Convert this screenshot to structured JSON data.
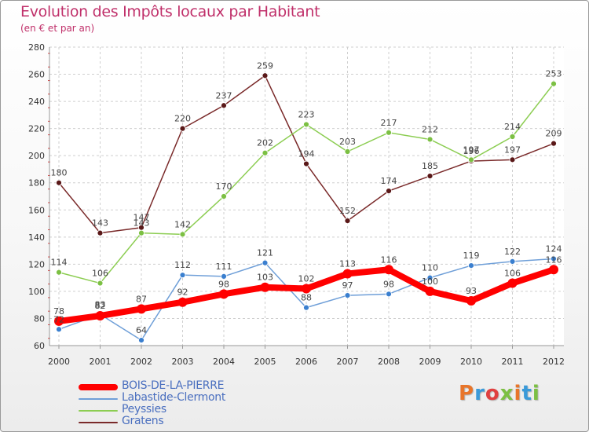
{
  "chart_data": {
    "type": "line",
    "title": "Evolution des Impôts locaux par Habitant",
    "subtitle": "(en € et par an)",
    "xlabel": "",
    "ylabel": "",
    "ylim": [
      60,
      280
    ],
    "yticks": [
      60,
      80,
      100,
      120,
      140,
      160,
      180,
      200,
      220,
      240,
      260,
      280
    ],
    "x": [
      2000,
      2001,
      2002,
      2003,
      2004,
      2005,
      2006,
      2007,
      2008,
      2009,
      2010,
      2011,
      2012
    ],
    "x_labels": [
      "2000",
      "2001",
      "2002",
      "2003",
      "2004",
      "2005",
      "2006",
      "2007",
      "2008",
      "2009",
      "2010",
      "2011",
      "2012"
    ],
    "grid": true,
    "legend_position": "bottom-left",
    "series": [
      {
        "name": "BOIS-DE-LA-PIERRE",
        "color": "#ff0000",
        "values": [
          78,
          82,
          87,
          92,
          98,
          103,
          102,
          113,
          116,
          100,
          93,
          106,
          116
        ],
        "labels": [
          "78",
          "82",
          "87",
          "92",
          "98",
          "103",
          "102",
          "113",
          "116",
          "100",
          "93",
          "106",
          "116"
        ]
      },
      {
        "name": "Labastide-Clermont",
        "color": "#6f9fd8",
        "values": [
          72,
          83,
          64,
          112,
          111,
          121,
          88,
          97,
          98,
          110,
          119,
          122,
          124
        ],
        "labels": [
          "72",
          "83",
          "64",
          "112",
          "111",
          "121",
          "88",
          "97",
          "98",
          "110",
          "119",
          "122",
          "124"
        ]
      },
      {
        "name": "Peyssies",
        "color": "#8ccd52",
        "values": [
          114,
          106,
          143,
          142,
          170,
          202,
          223,
          203,
          217,
          212,
          197,
          214,
          253
        ],
        "labels": [
          "114",
          "106",
          "143",
          "142",
          "170",
          "202",
          "223",
          "203",
          "217",
          "212",
          "197",
          "214",
          "253"
        ]
      },
      {
        "name": "Gratens",
        "color": "#7a2a2a",
        "values": [
          180,
          143,
          147,
          220,
          237,
          259,
          194,
          152,
          174,
          185,
          196,
          197,
          209
        ],
        "labels": [
          "180",
          "143",
          "147",
          "220",
          "237",
          "259",
          "194",
          "152",
          "174",
          "185",
          "196",
          "197",
          "209"
        ]
      }
    ]
  },
  "logo": {
    "text": "Proxiti",
    "colors": [
      "#e8752a",
      "#3a9ad9",
      "#e04040",
      "#7cc043",
      "#e8752a",
      "#3a9ad9",
      "#7cc043"
    ]
  }
}
